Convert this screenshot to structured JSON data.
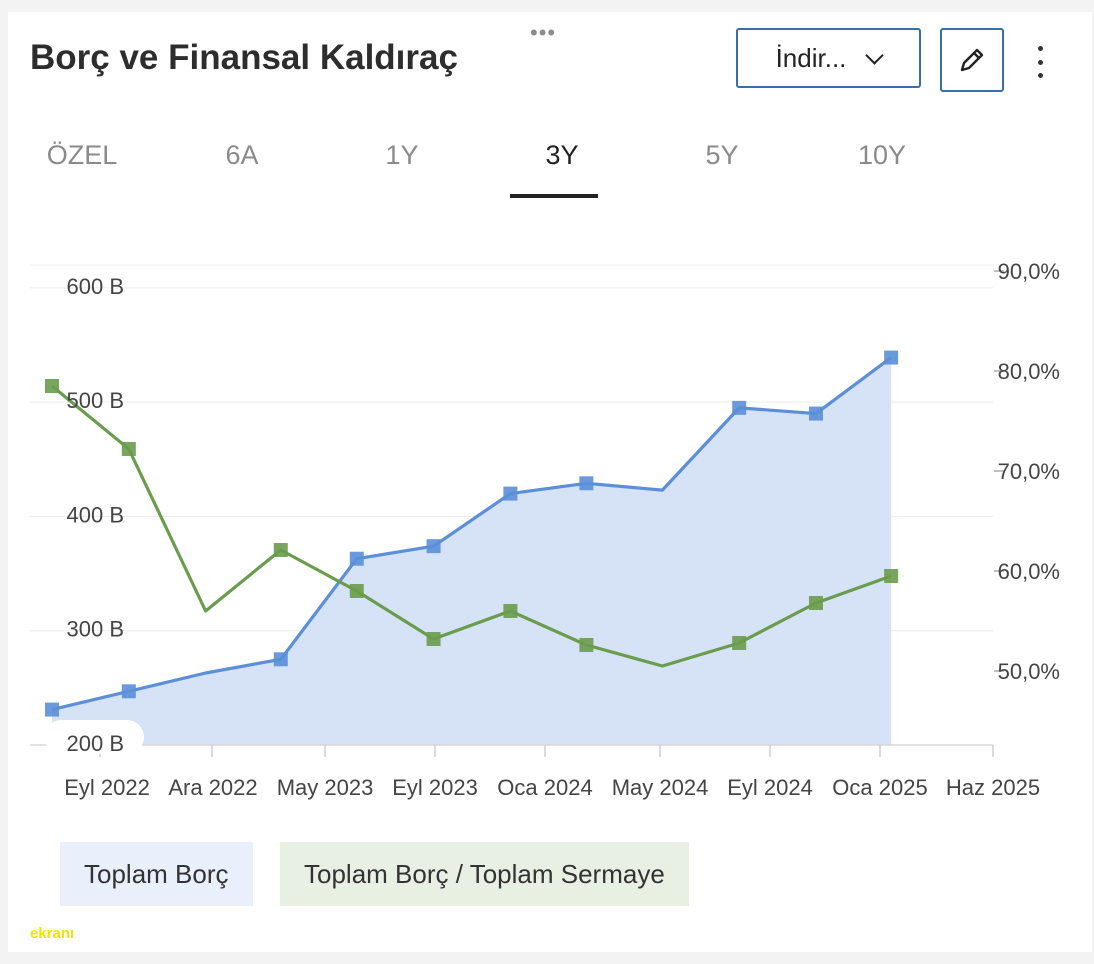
{
  "header": {
    "title": "Borç ve Finansal Kaldıraç",
    "download_label": "İndir...",
    "drag_handle": "•••"
  },
  "icons": {
    "drag": "drag-handle-icon",
    "download": "chevron-down-icon",
    "edit": "pencil-icon",
    "more": "more-vertical-icon"
  },
  "tabs": [
    {
      "label": "ÖZEL",
      "active": false
    },
    {
      "label": "6A",
      "active": false
    },
    {
      "label": "1Y",
      "active": false
    },
    {
      "label": "3Y",
      "active": true
    },
    {
      "label": "5Y",
      "active": false
    },
    {
      "label": "10Y",
      "active": false
    }
  ],
  "legend": {
    "debt": "Toplam Borç",
    "ratio": "Toplam Borç / Toplam Sermaye"
  },
  "watermark": "ekranı",
  "colors": {
    "debt": "#5b8fd8",
    "debt_fill": "#d6e2f5",
    "ratio": "#6a9c4e",
    "accent": "#3a6ea8"
  },
  "chart_data": {
    "type": "line",
    "x_ticks": [
      "Eyl 2022",
      "Ara 2022",
      "May 2023",
      "Eyl 2023",
      "Oca 2024",
      "May 2024",
      "Eyl 2024",
      "Oca 2025",
      "Haz 2025"
    ],
    "y_left_ticks": [
      "200 B",
      "300 B",
      "400 B",
      "500 B",
      "600 B"
    ],
    "y_left_range": [
      200,
      620
    ],
    "y_right_ticks": [
      "50,0%",
      "60,0%",
      "70,0%",
      "80,0%",
      "90,0%"
    ],
    "y_right_range": [
      44,
      92
    ],
    "series": [
      {
        "name": "Toplam Borç",
        "axis": "left",
        "area": true,
        "marker": "square",
        "dates": [
          "2022-06-30",
          "2022-09-30",
          "2022-12-31",
          "2023-03-31",
          "2023-06-30",
          "2023-09-30",
          "2023-12-31",
          "2024-03-31",
          "2024-06-30",
          "2024-09-30",
          "2024-12-31",
          "2025-03-31"
        ],
        "values": [
          231,
          247,
          263,
          275,
          363,
          374,
          420,
          429,
          423,
          495,
          490,
          539
        ],
        "markers": [
          true,
          true,
          false,
          true,
          true,
          true,
          true,
          true,
          false,
          true,
          true,
          true
        ]
      },
      {
        "name": "Toplam Borç / Toplam Sermaye",
        "axis": "right",
        "area": false,
        "marker": "square",
        "dates": [
          "2022-06-30",
          "2022-09-30",
          "2022-12-31",
          "2023-03-31",
          "2023-06-30",
          "2023-09-30",
          "2023-12-31",
          "2024-03-31",
          "2024-06-30",
          "2024-09-30",
          "2024-12-31",
          "2025-03-31"
        ],
        "values": [
          79.9,
          73.6,
          57.4,
          63.5,
          59.4,
          54.6,
          57.4,
          54.0,
          51.9,
          54.2,
          58.2,
          60.9
        ],
        "markers": [
          true,
          true,
          false,
          true,
          true,
          true,
          true,
          true,
          false,
          true,
          true,
          true
        ]
      }
    ]
  }
}
